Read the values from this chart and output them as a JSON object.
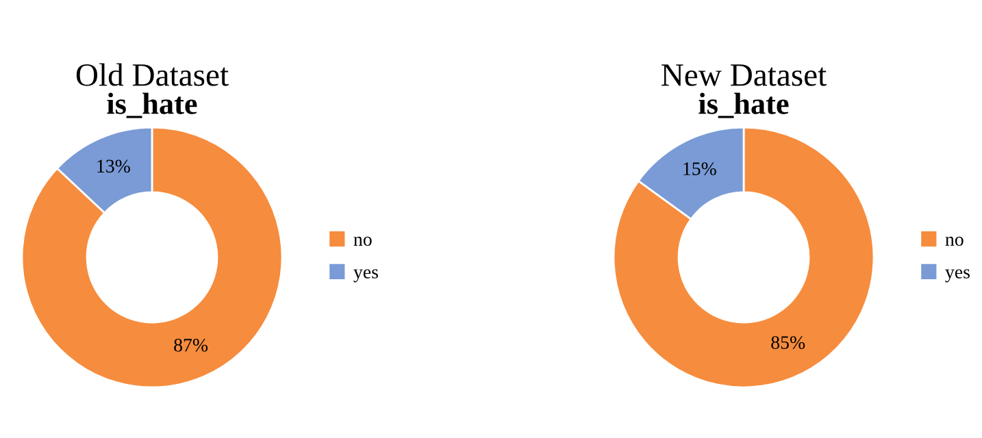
{
  "chart_data": [
    {
      "type": "donut",
      "title": "Old Dataset",
      "subtitle": "is_hate",
      "categories": [
        "no",
        "yes"
      ],
      "values": [
        87,
        13
      ],
      "colors": [
        "#f68c3d",
        "#7a9bd6"
      ],
      "value_labels": [
        "87%",
        "13%"
      ],
      "legend": "right"
    },
    {
      "type": "donut",
      "title": "New Dataset",
      "subtitle": "is_hate",
      "categories": [
        "no",
        "yes"
      ],
      "values": [
        85,
        15
      ],
      "colors": [
        "#f68c3d",
        "#7a9bd6"
      ],
      "value_labels": [
        "85%",
        "15%"
      ],
      "legend": "right"
    }
  ]
}
